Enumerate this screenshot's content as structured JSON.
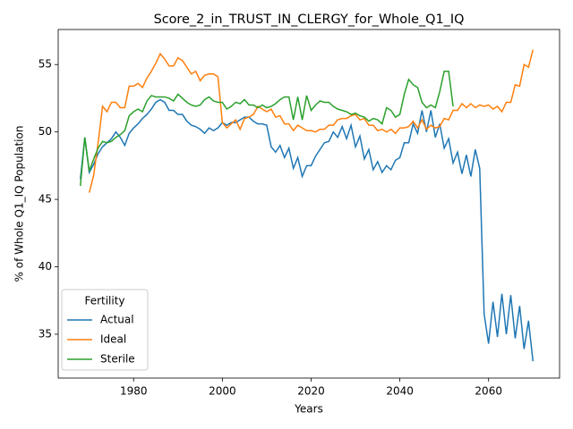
{
  "chart_data": {
    "type": "line",
    "title": "Score_2_in_TRUST_IN_CLERGY_for_Whole_Q1_IQ",
    "x_label": "Years",
    "y_label": "% of Whole Q1_IQ Population",
    "legend_title": "Fertility",
    "legend_loc": "lower left",
    "xlim": [
      1963,
      2076
    ],
    "ylim": [
      31.75,
      57.6
    ],
    "xticks": [
      1980,
      2000,
      2020,
      2040,
      2060
    ],
    "yticks": [
      35,
      40,
      45,
      50,
      55
    ],
    "x": [
      1968,
      1969,
      1970,
      1971,
      1972,
      1973,
      1974,
      1975,
      1976,
      1977,
      1978,
      1979,
      1980,
      1981,
      1982,
      1983,
      1984,
      1985,
      1986,
      1987,
      1988,
      1989,
      1990,
      1991,
      1992,
      1993,
      1994,
      1995,
      1996,
      1997,
      1998,
      1999,
      2000,
      2001,
      2002,
      2003,
      2004,
      2005,
      2006,
      2007,
      2008,
      2009,
      2010,
      2011,
      2012,
      2013,
      2014,
      2015,
      2016,
      2017,
      2018,
      2019,
      2020,
      2021,
      2022,
      2023,
      2024,
      2025,
      2026,
      2027,
      2028,
      2029,
      2030,
      2031,
      2032,
      2033,
      2034,
      2035,
      2036,
      2037,
      2038,
      2039,
      2040,
      2041,
      2042,
      2043,
      2044,
      2045,
      2046,
      2047,
      2048,
      2049,
      2050,
      2051,
      2052,
      2053,
      2054,
      2055,
      2056,
      2057,
      2058,
      2059,
      2060,
      2061,
      2062,
      2063,
      2064,
      2065,
      2066,
      2067,
      2068,
      2069,
      2070
    ],
    "series": [
      {
        "name": "Actual",
        "color": "#1f77b4",
        "values": [
          46.5,
          49.6,
          47.0,
          47.6,
          48.4,
          48.9,
          49.2,
          49.5,
          50.0,
          49.6,
          49.0,
          49.9,
          50.3,
          50.6,
          51.0,
          51.3,
          51.7,
          52.2,
          52.4,
          52.2,
          51.6,
          51.6,
          51.3,
          51.3,
          50.8,
          50.5,
          50.4,
          50.2,
          49.9,
          50.3,
          50.1,
          50.3,
          50.7,
          50.5,
          50.7,
          50.7,
          50.9,
          51.1,
          51.1,
          50.8,
          50.6,
          50.6,
          50.5,
          48.9,
          48.5,
          49.0,
          48.1,
          48.8,
          47.3,
          48.1,
          46.7,
          47.5,
          47.5,
          48.2,
          48.7,
          49.2,
          49.3,
          50.0,
          49.6,
          50.4,
          49.5,
          50.5,
          48.9,
          49.7,
          48.0,
          48.7,
          47.2,
          47.8,
          47.0,
          47.5,
          47.2,
          47.9,
          48.1,
          49.2,
          49.2,
          50.6,
          49.9,
          51.6,
          50.0,
          51.6,
          49.6,
          50.6,
          48.8,
          49.5,
          47.7,
          48.5,
          46.9,
          48.3,
          46.7,
          48.7,
          47.3,
          36.5,
          34.3,
          37.4,
          34.8,
          38.0,
          35.0,
          37.9,
          34.7,
          37.1,
          33.9,
          36.0,
          33.0
        ]
      },
      {
        "name": "Ideal",
        "color": "#ff7f0e",
        "values": [
          null,
          null,
          45.5,
          46.8,
          49.2,
          51.9,
          51.5,
          52.2,
          52.2,
          51.8,
          51.8,
          53.4,
          53.4,
          53.6,
          53.3,
          54.0,
          54.5,
          55.1,
          55.8,
          55.4,
          54.9,
          54.9,
          55.5,
          55.3,
          54.8,
          54.3,
          54.5,
          53.8,
          54.2,
          54.3,
          54.3,
          54.1,
          50.7,
          50.3,
          50.6,
          50.9,
          50.2,
          51.0,
          51.1,
          51.3,
          51.9,
          51.7,
          51.5,
          51.7,
          51.1,
          51.2,
          50.6,
          50.6,
          50.1,
          50.5,
          50.3,
          50.1,
          50.1,
          50.0,
          50.2,
          50.2,
          50.5,
          50.5,
          50.9,
          51.0,
          51.0,
          51.2,
          51.3,
          50.9,
          51.0,
          50.5,
          50.5,
          50.1,
          50.2,
          50.0,
          50.2,
          49.9,
          50.3,
          50.3,
          50.4,
          50.8,
          50.3,
          50.9,
          50.2,
          50.5,
          50.3,
          50.4,
          51.0,
          50.9,
          51.6,
          51.6,
          52.1,
          51.8,
          52.1,
          51.8,
          52.0,
          51.9,
          52.0,
          51.7,
          51.9,
          51.5,
          52.2,
          52.2,
          53.5,
          53.4,
          55.0,
          54.8,
          56.1
        ]
      },
      {
        "name": "Sterile",
        "color": "#2ca02c",
        "values": [
          46.0,
          49.6,
          47.1,
          48.0,
          48.8,
          49.3,
          49.2,
          49.3,
          49.6,
          49.8,
          50.1,
          51.2,
          51.5,
          51.7,
          51.5,
          52.3,
          52.7,
          52.6,
          52.6,
          52.6,
          52.5,
          52.3,
          52.8,
          52.5,
          52.2,
          52.0,
          51.9,
          52.0,
          52.4,
          52.6,
          52.3,
          52.2,
          52.2,
          51.7,
          51.9,
          52.2,
          52.1,
          52.4,
          52.0,
          52.0,
          51.8,
          52.0,
          51.8,
          51.9,
          52.1,
          52.4,
          52.6,
          52.6,
          50.9,
          52.6,
          50.9,
          52.7,
          51.6,
          52.0,
          52.3,
          52.2,
          52.2,
          51.9,
          51.7,
          51.6,
          51.5,
          51.3,
          51.4,
          51.2,
          51.1,
          50.8,
          51.0,
          50.9,
          50.6,
          51.8,
          51.6,
          51.1,
          51.3,
          52.8,
          53.9,
          53.5,
          53.3,
          52.2,
          51.8,
          52.0,
          51.8,
          53.0,
          54.5,
          54.5,
          51.9,
          null,
          null,
          null,
          null,
          null,
          null,
          null,
          null,
          null,
          null,
          null,
          null,
          null,
          null,
          null,
          null,
          null,
          null
        ]
      }
    ]
  }
}
